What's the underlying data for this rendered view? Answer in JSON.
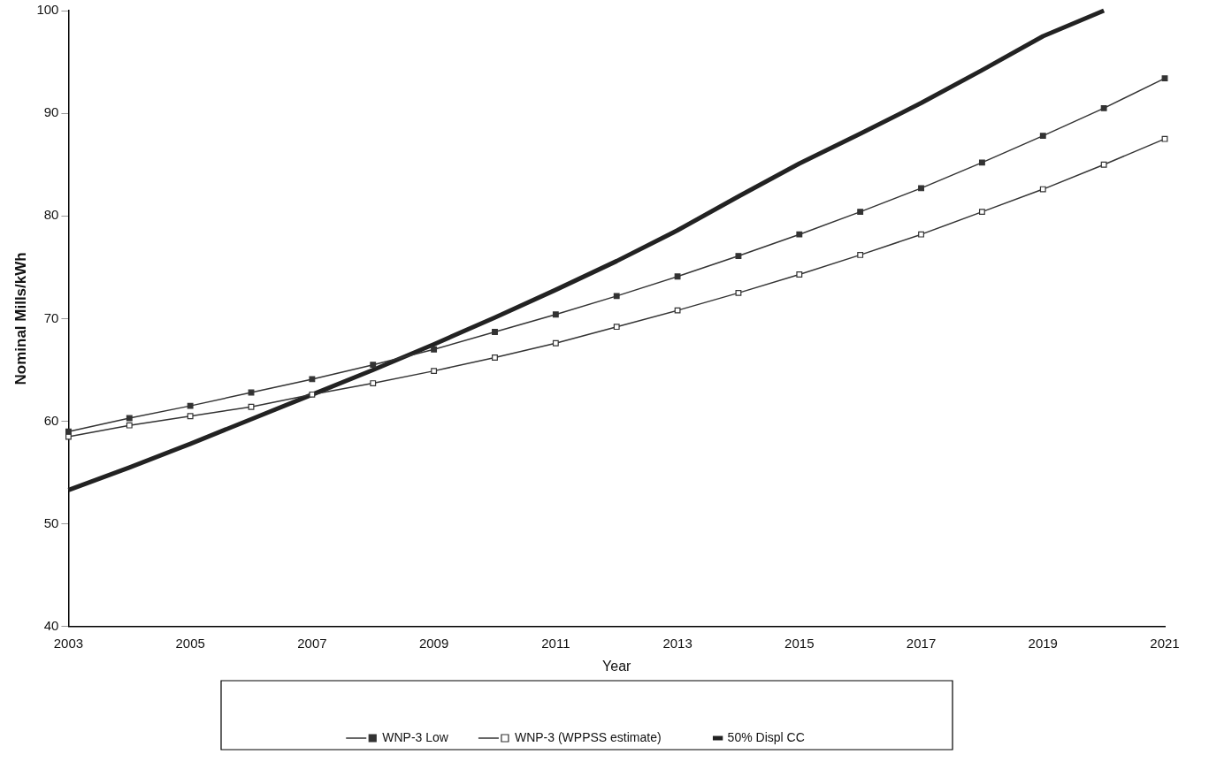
{
  "chart_data": {
    "type": "line",
    "xlabel": "Year",
    "ylabel": "Nominal Mills/kWh",
    "x": [
      2003,
      2004,
      2005,
      2006,
      2007,
      2008,
      2009,
      2010,
      2011,
      2012,
      2013,
      2014,
      2015,
      2016,
      2017,
      2018,
      2019,
      2020,
      2021
    ],
    "xlim": [
      2003,
      2021
    ],
    "xticks": [
      2003,
      2005,
      2007,
      2009,
      2011,
      2013,
      2015,
      2017,
      2019,
      2021
    ],
    "ylim": [
      40,
      100
    ],
    "yticks": [
      40,
      50,
      60,
      70,
      80,
      90,
      100
    ],
    "grid": false,
    "legend": "bottom",
    "line_style": "solid",
    "series": [
      {
        "name": "WNP-3 Low",
        "color": "#333333",
        "marker": "square",
        "values": [
          59.0,
          60.3,
          61.5,
          62.8,
          64.1,
          65.5,
          67.0,
          68.7,
          70.4,
          72.2,
          74.1,
          76.1,
          78.2,
          80.4,
          82.7,
          85.2,
          87.8,
          90.5,
          93.4
        ]
      },
      {
        "name": "WNP-3 (WPPSS estimate)",
        "color": "#333333",
        "marker": "square",
        "values": [
          58.5,
          59.6,
          60.5,
          61.4,
          62.6,
          63.7,
          64.9,
          66.2,
          67.6,
          69.2,
          70.8,
          72.5,
          74.3,
          76.2,
          78.2,
          80.4,
          82.6,
          85.0,
          87.5
        ]
      },
      {
        "name": "50% Displ CC",
        "color": "#222222",
        "marker": "none",
        "values": [
          53.3,
          55.5,
          57.8,
          60.2,
          62.6,
          65.0,
          67.5,
          70.1,
          72.8,
          75.6,
          78.6,
          81.9,
          85.1,
          88.0,
          91.0,
          94.2,
          97.5,
          100,
          null
        ]
      }
    ]
  }
}
